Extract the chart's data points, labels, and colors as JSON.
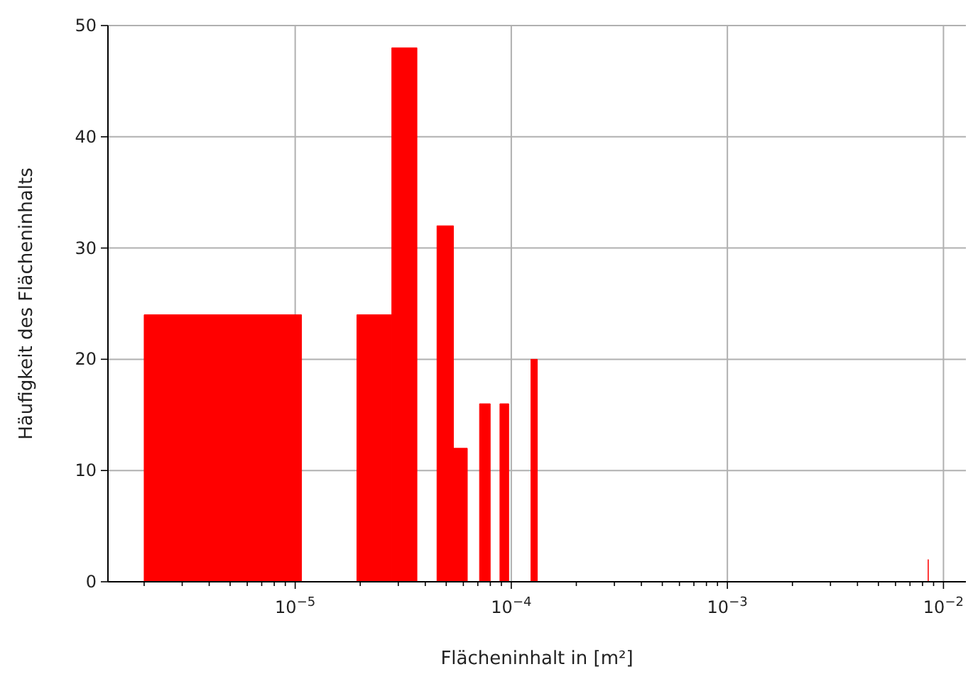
{
  "chart_data": {
    "type": "histogram",
    "xlabel": "Flächeninhalt in [m²]",
    "ylabel": "Häufigkeit des Flächeninhalts",
    "color": "#ff0000",
    "log": "x",
    "bins": [
      2e-06,
      1.07e-05,
      1.93e-05,
      2.8e-05,
      3.66e-05,
      4.53e-05,
      5.4e-05,
      6.26e-05,
      7.13e-05,
      7.99e-05,
      8.86e-05,
      9.73e-05,
      0.0001233,
      0.000132,
      0.008497,
      0.008506
    ],
    "values": [
      24,
      0,
      24,
      48,
      0,
      32,
      12,
      0,
      16,
      0,
      16,
      0,
      20,
      0,
      2
    ],
    "xlim": [
      1.36e-06,
      0.0127
    ],
    "xticks": [
      {
        "value": 2e-06,
        "label": null
      },
      {
        "value": 3e-06,
        "label": null
      },
      {
        "value": 4e-06,
        "label": null
      },
      {
        "value": 5e-06,
        "label": null
      },
      {
        "value": 6e-06,
        "label": null
      },
      {
        "value": 7e-06,
        "label": null
      },
      {
        "value": 8e-06,
        "label": null
      },
      {
        "value": 9e-06,
        "label": null
      },
      {
        "value": 1e-05,
        "label": "10$^{−5}$"
      },
      {
        "value": 2e-05,
        "label": null
      },
      {
        "value": 3e-05,
        "label": null
      },
      {
        "value": 4e-05,
        "label": null
      },
      {
        "value": 5e-05,
        "label": null
      },
      {
        "value": 6e-05,
        "label": null
      },
      {
        "value": 7e-05,
        "label": null
      },
      {
        "value": 8e-05,
        "label": null
      },
      {
        "value": 9e-05,
        "label": null
      },
      {
        "value": 0.0001,
        "label": "10$^{−4}$"
      },
      {
        "value": 0.0002,
        "label": null
      },
      {
        "value": 0.0003,
        "label": null
      },
      {
        "value": 0.0004,
        "label": null
      },
      {
        "value": 0.0005,
        "label": null
      },
      {
        "value": 0.0006,
        "label": null
      },
      {
        "value": 0.0007,
        "label": null
      },
      {
        "value": 0.0008,
        "label": null
      },
      {
        "value": 0.0009,
        "label": null
      },
      {
        "value": 0.001,
        "label": "10$^{−3}$"
      },
      {
        "value": 0.002,
        "label": null
      },
      {
        "value": 0.003,
        "label": null
      },
      {
        "value": 0.004,
        "label": null
      },
      {
        "value": 0.005,
        "label": null
      },
      {
        "value": 0.006,
        "label": null
      },
      {
        "value": 0.007,
        "label": null
      },
      {
        "value": 0.008,
        "label": null
      },
      {
        "value": 0.009,
        "label": null
      },
      {
        "value": 0.01,
        "label": "10$^{−2}$"
      }
    ],
    "ylim": [
      0,
      50
    ],
    "yticks": [
      0,
      10,
      20,
      30,
      40,
      50
    ],
    "grid": true
  }
}
